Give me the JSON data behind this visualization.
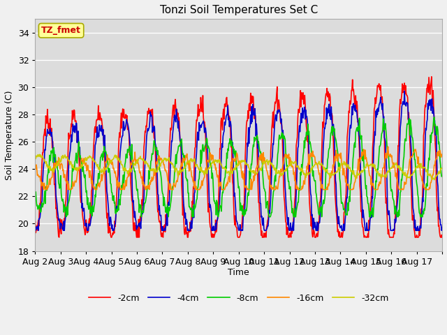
{
  "title": "Tonzi Soil Temperatures Set C",
  "xlabel": "Time",
  "ylabel": "Soil Temperature (C)",
  "ylim": [
    18,
    35
  ],
  "yticks": [
    18,
    20,
    22,
    24,
    26,
    28,
    30,
    32,
    34
  ],
  "xtick_labels": [
    "Aug 2",
    "Aug 3",
    "Aug 4",
    "Aug 5",
    "Aug 6",
    "Aug 7",
    "Aug 8",
    "Aug 9",
    "Aug 10",
    "Aug 11",
    "Aug 12",
    "Aug 13",
    "Aug 14",
    "Aug 15",
    "Aug 16",
    "Aug 17"
  ],
  "legend_labels": [
    "-2cm",
    "-4cm",
    "-8cm",
    "-16cm",
    "-32cm"
  ],
  "line_colors": [
    "#ff0000",
    "#0000cc",
    "#00cc00",
    "#ff8800",
    "#cccc00"
  ],
  "annotation_text": "TZ_fmet",
  "annotation_color": "#cc0000",
  "annotation_bg": "#ffff99",
  "annotation_border": "#aaaa00",
  "plot_bg_color": "#dcdcdc",
  "fig_bg_color": "#f0f0f0",
  "grid_color": "#ffffff",
  "n_days": 16,
  "pts_per_day": 48,
  "figsize": [
    6.4,
    4.8
  ],
  "dpi": 100
}
